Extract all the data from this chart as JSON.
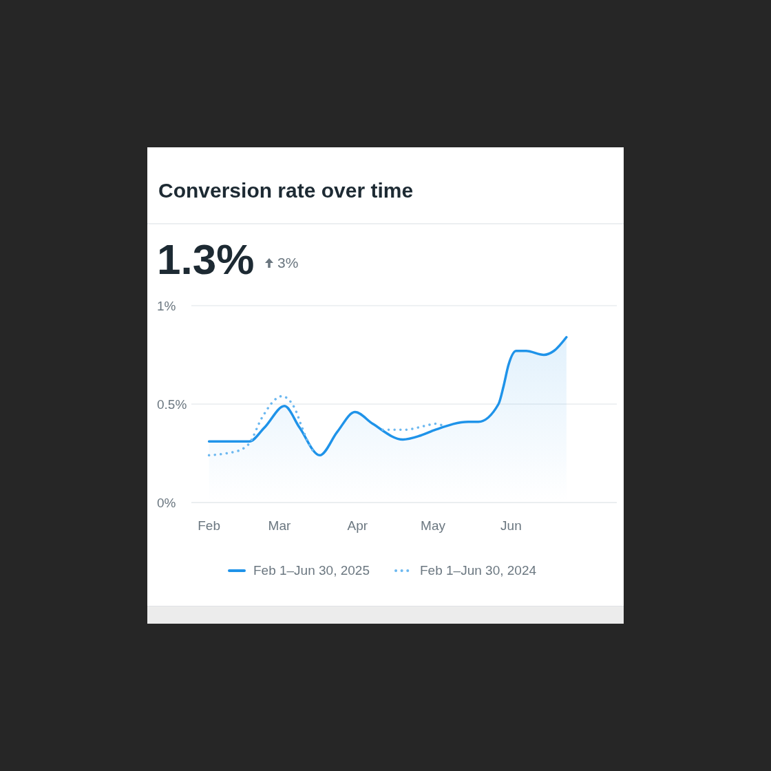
{
  "chart_data": {
    "type": "line",
    "title": "Conversion rate over time",
    "subtitle": "1.3%",
    "annotations": [
      "3%"
    ],
    "xlim": [
      "--01-25",
      "--07-13"
    ],
    "xticks": [
      {
        "value": "--02-01",
        "label": "Feb"
      },
      {
        "value": "--03-01",
        "label": "Mar"
      },
      {
        "value": "--04-01",
        "label": "Apr"
      },
      {
        "value": "--05-01",
        "label": "May"
      },
      {
        "value": "--06-01",
        "label": "Jun"
      }
    ],
    "ylim": [
      0,
      1
    ],
    "yticks": [
      {
        "value": 0,
        "label": "0%"
      },
      {
        "value": 0.5,
        "label": "0.5%"
      },
      {
        "value": 1,
        "label": "1%"
      }
    ],
    "grid": "y",
    "legend": "bottom",
    "series": [
      {
        "name": "Feb 1–Jun 30, 2025",
        "type": "area",
        "color": "#1f93e9",
        "line_style": "solid",
        "x": [
          "--02-01",
          "--02-08",
          "--02-17",
          "--02-23",
          "--03-03",
          "--03-09",
          "--03-17",
          "--03-24",
          "--03-31",
          "--04-07",
          "--04-19",
          "--04-26",
          "--05-02",
          "--05-15",
          "--05-19",
          "--05-27",
          "--05-29",
          "--05-31",
          "--06-03",
          "--06-07",
          "--06-14",
          "--06-18",
          "--06-23"
        ],
        "values": [
          0.31,
          0.31,
          0.31,
          0.38,
          0.49,
          0.38,
          0.24,
          0.36,
          0.46,
          0.4,
          0.32,
          0.34,
          0.37,
          0.41,
          0.41,
          0.5,
          0.59,
          0.7,
          0.77,
          0.77,
          0.75,
          0.77,
          0.84
        ]
      },
      {
        "name": "Feb 1–Jun 30, 2024",
        "type": "line",
        "color": "#6cb8f0",
        "line_style": "dotted",
        "x": [
          "--02-01",
          "--02-08",
          "--02-14",
          "--02-17",
          "--02-22",
          "--03-02",
          "--03-07",
          "--03-10",
          "--03-13",
          "--03-15",
          "--03-25",
          "--04-11",
          "--04-20",
          "--04-28",
          "--05-02",
          "--05-05"
        ],
        "values": [
          0.24,
          0.25,
          0.27,
          0.3,
          0.43,
          0.54,
          0.48,
          0.38,
          0.29,
          0.25,
          null,
          0.37,
          0.37,
          0.39,
          0.4,
          0.39
        ]
      }
    ]
  }
}
